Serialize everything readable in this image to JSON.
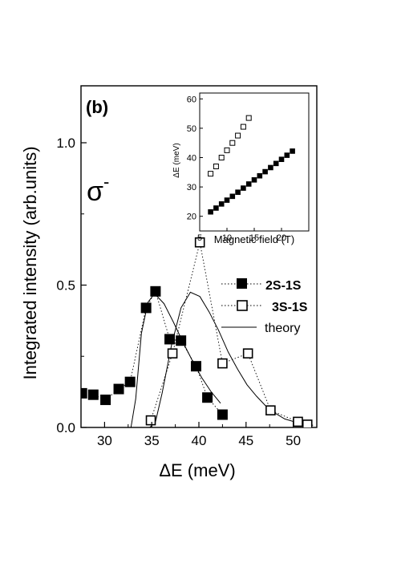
{
  "chart_data": [
    {
      "type": "scatter",
      "panel_label": "(b)",
      "annotation": "σ",
      "annotation_superscript": "-",
      "xlabel": "ΔE (meV)",
      "ylabel": "Integrated intensity (arb.units)",
      "xlim": [
        27.5,
        52.5
      ],
      "ylim": [
        0.0,
        1.2
      ],
      "xticks": [
        30,
        35,
        40,
        45,
        50
      ],
      "xtick_labels": [
        "30",
        "35",
        "40",
        "45",
        "50"
      ],
      "yticks": [
        0.0,
        0.5,
        1.0
      ],
      "ytick_labels": [
        "0.0",
        "0.5",
        "1.0"
      ],
      "grid": false,
      "legend_position": "right",
      "series": [
        {
          "name": "2S-1S",
          "marker": "filled-square",
          "line": "dotted",
          "points": [
            [
              27.6,
              0.12
            ],
            [
              28.8,
              0.115
            ],
            [
              30.1,
              0.097
            ],
            [
              31.5,
              0.135
            ],
            [
              32.7,
              0.16
            ],
            [
              34.4,
              0.42
            ],
            [
              35.4,
              0.478
            ],
            [
              36.9,
              0.31
            ],
            [
              38.1,
              0.305
            ],
            [
              39.7,
              0.215
            ],
            [
              40.9,
              0.105
            ],
            [
              42.5,
              0.045
            ]
          ]
        },
        {
          "name": "3S-1S",
          "marker": "open-square",
          "line": "dotted",
          "points": [
            [
              34.9,
              0.025
            ],
            [
              37.2,
              0.26
            ],
            [
              40.1,
              0.65
            ],
            [
              42.5,
              0.225
            ],
            [
              45.2,
              0.26
            ],
            [
              47.6,
              0.06
            ],
            [
              50.5,
              0.02
            ],
            [
              51.5,
              0.01
            ]
          ]
        },
        {
          "name": "theory",
          "line": "solid",
          "curves": [
            [
              [
                32.8,
                0.0
              ],
              [
                33.3,
                0.1
              ],
              [
                33.9,
                0.33
              ],
              [
                34.6,
                0.44
              ],
              [
                35.3,
                0.47
              ],
              [
                36.3,
                0.435
              ],
              [
                37.3,
                0.37
              ],
              [
                38.3,
                0.3
              ],
              [
                39.3,
                0.235
              ],
              [
                40.3,
                0.175
              ],
              [
                41.3,
                0.125
              ],
              [
                42.3,
                0.085
              ]
            ],
            [
              [
                34.8,
                0.0
              ],
              [
                35.4,
                0.02
              ],
              [
                36.1,
                0.12
              ],
              [
                37.1,
                0.29
              ],
              [
                38.1,
                0.42
              ],
              [
                39.1,
                0.475
              ],
              [
                40.1,
                0.46
              ],
              [
                41.1,
                0.405
              ],
              [
                42.1,
                0.34
              ],
              [
                43.1,
                0.265
              ],
              [
                44.1,
                0.205
              ],
              [
                45.1,
                0.15
              ],
              [
                46.1,
                0.11
              ],
              [
                47.1,
                0.075
              ],
              [
                48.1,
                0.05
              ],
              [
                49.1,
                0.03
              ],
              [
                50.1,
                0.02
              ],
              [
                51.1,
                0.012
              ],
              [
                52.1,
                0.008
              ]
            ]
          ]
        }
      ]
    },
    {
      "type": "scatter",
      "role": "inset",
      "xlabel": "Magnetic field (T)",
      "ylabel": "ΔE (meV)",
      "xlim": [
        5,
        25
      ],
      "ylim": [
        15,
        62
      ],
      "xticks": [
        5,
        10,
        15,
        20
      ],
      "xtick_labels": [
        "5",
        "10",
        "15",
        "20"
      ],
      "yticks": [
        20,
        30,
        40,
        50,
        60
      ],
      "ytick_labels": [
        "20",
        "30",
        "40",
        "50",
        "60"
      ],
      "grid": false,
      "series": [
        {
          "marker": "filled-square",
          "points": [
            [
              7,
              21.5
            ],
            [
              8,
              22.8
            ],
            [
              9,
              24.2
            ],
            [
              10,
              25.5
            ],
            [
              11,
              26.8
            ],
            [
              12,
              28.2
            ],
            [
              13,
              29.6
            ],
            [
              14,
              31
            ],
            [
              15,
              32.4
            ],
            [
              16,
              33.8
            ],
            [
              17,
              35.2
            ],
            [
              18,
              36.6
            ],
            [
              19,
              38
            ],
            [
              20,
              39.4
            ],
            [
              21,
              40.8
            ],
            [
              22,
              42.2
            ]
          ]
        },
        {
          "marker": "open-square",
          "points": [
            [
              7,
              34.5
            ],
            [
              8,
              37
            ],
            [
              9,
              40
            ],
            [
              10,
              42.5
            ],
            [
              11,
              45
            ],
            [
              12,
              47.5
            ],
            [
              13,
              50.5
            ],
            [
              14,
              53.5
            ]
          ]
        }
      ]
    }
  ]
}
